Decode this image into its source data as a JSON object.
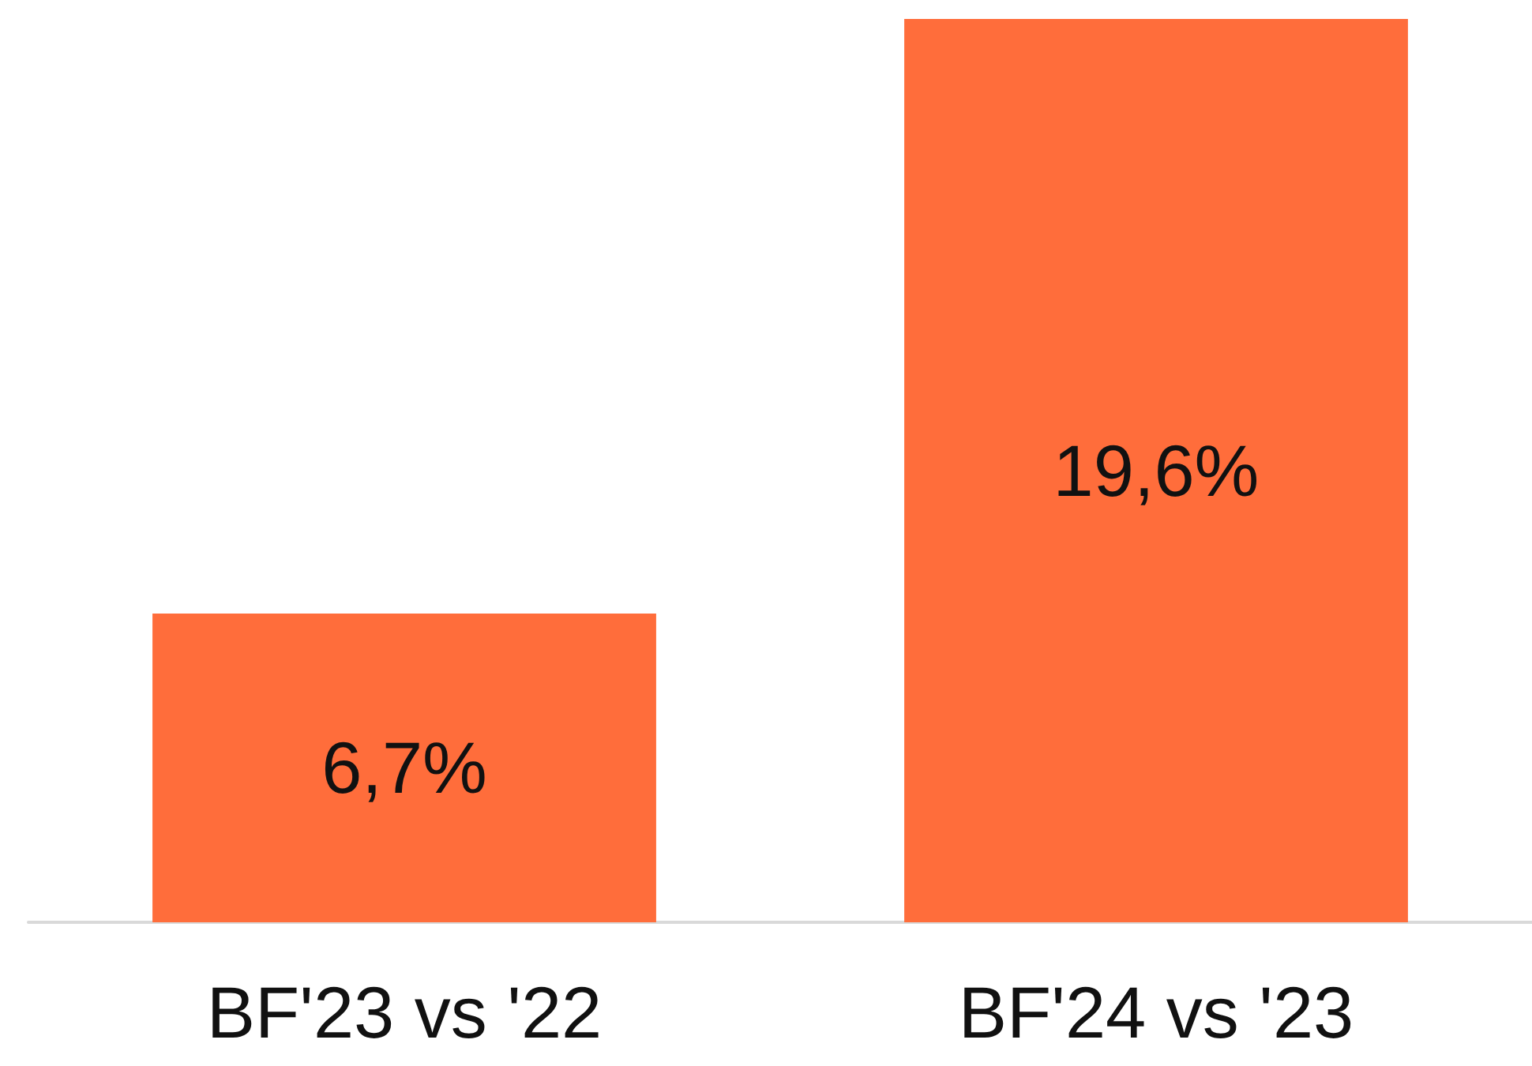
{
  "chart_data": {
    "type": "bar",
    "categories": [
      "BF'23 vs '22",
      "BF'24 vs '23"
    ],
    "values": [
      6.7,
      19.6
    ],
    "value_labels": [
      "6,7%",
      "19,6%"
    ],
    "color": "#ff6d3b"
  }
}
